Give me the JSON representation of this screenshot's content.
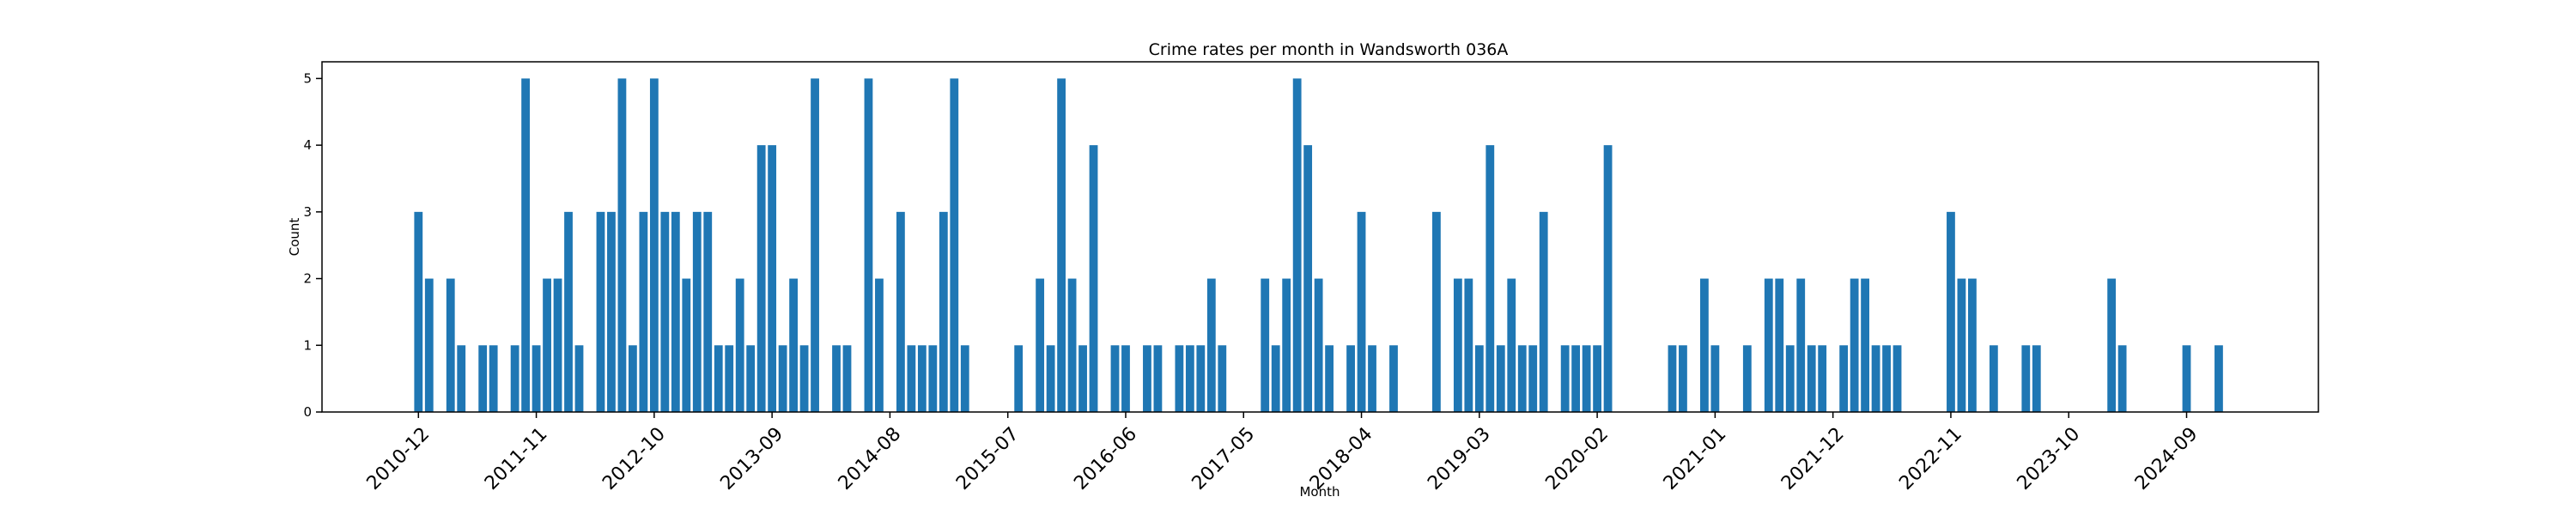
{
  "chart_data": {
    "type": "bar",
    "title": "Crime rates per month in Wandsworth 036A",
    "xlabel": "Month",
    "ylabel": "Count",
    "bar_color": "#1f77b4",
    "ylim": [
      0,
      5.25
    ],
    "yticks": [
      0,
      1,
      2,
      3,
      4,
      5
    ],
    "xticks": [
      "2010-12",
      "2011-11",
      "2012-10",
      "2013-09",
      "2014-08",
      "2015-07",
      "2016-06",
      "2017-05",
      "2018-04",
      "2019-03",
      "2020-02",
      "2021-01",
      "2021-12",
      "2022-11",
      "2023-10",
      "2024-09"
    ],
    "grid": false,
    "legend": "none",
    "series": [
      {
        "categories": [
          "2010-12",
          "2011-01",
          "2011-03",
          "2011-04",
          "2011-06",
          "2011-07",
          "2011-09",
          "2011-10",
          "2011-11",
          "2011-12",
          "2012-01",
          "2012-02",
          "2012-03",
          "2012-05",
          "2012-06",
          "2012-07",
          "2012-08",
          "2012-09",
          "2012-10",
          "2012-11",
          "2012-12",
          "2013-01",
          "2013-02",
          "2013-03",
          "2013-04",
          "2013-05",
          "2013-06",
          "2013-07",
          "2013-08",
          "2013-09",
          "2013-10",
          "2013-11",
          "2013-12",
          "2014-01",
          "2014-03",
          "2014-04",
          "2014-06",
          "2014-07",
          "2014-09",
          "2014-10",
          "2014-11",
          "2014-12",
          "2015-01",
          "2015-02",
          "2015-03",
          "2015-08",
          "2015-10",
          "2015-11",
          "2015-12",
          "2016-01",
          "2016-02",
          "2016-03",
          "2016-05",
          "2016-06",
          "2016-08",
          "2016-09",
          "2016-11",
          "2016-12",
          "2017-01",
          "2017-02",
          "2017-03",
          "2017-07",
          "2017-08",
          "2017-09",
          "2017-10",
          "2017-11",
          "2017-12",
          "2018-01",
          "2018-03",
          "2018-04",
          "2018-05",
          "2018-07",
          "2018-11",
          "2019-01",
          "2019-02",
          "2019-03",
          "2019-04",
          "2019-05",
          "2019-06",
          "2019-07",
          "2019-08",
          "2019-09",
          "2019-11",
          "2019-12",
          "2020-01",
          "2020-02",
          "2020-03",
          "2020-09",
          "2020-10",
          "2020-12",
          "2021-01",
          "2021-04",
          "2021-06",
          "2021-07",
          "2021-08",
          "2021-09",
          "2021-10",
          "2021-11",
          "2022-01",
          "2022-02",
          "2022-03",
          "2022-04",
          "2022-05",
          "2022-06",
          "2022-11",
          "2022-12",
          "2023-01",
          "2023-03",
          "2023-06",
          "2023-07",
          "2024-02",
          "2024-03",
          "2024-09",
          "2024-12"
        ],
        "values": [
          3,
          2,
          2,
          1,
          1,
          1,
          1,
          5,
          1,
          2,
          2,
          3,
          1,
          3,
          3,
          5,
          1,
          3,
          5,
          3,
          3,
          2,
          3,
          3,
          1,
          1,
          2,
          1,
          4,
          4,
          1,
          2,
          1,
          5,
          1,
          1,
          5,
          2,
          3,
          1,
          1,
          1,
          3,
          5,
          1,
          1,
          2,
          1,
          5,
          2,
          1,
          4,
          1,
          1,
          1,
          1,
          1,
          1,
          1,
          2,
          1,
          2,
          1,
          2,
          5,
          4,
          2,
          1,
          1,
          3,
          1,
          1,
          3,
          2,
          2,
          1,
          4,
          1,
          2,
          1,
          1,
          3,
          1,
          1,
          1,
          1,
          4,
          1,
          1,
          2,
          1,
          1,
          2,
          2,
          1,
          2,
          1,
          1,
          1,
          2,
          2,
          1,
          1,
          1,
          3,
          2,
          2,
          1,
          1,
          1,
          2,
          1,
          1,
          1
        ]
      }
    ]
  }
}
